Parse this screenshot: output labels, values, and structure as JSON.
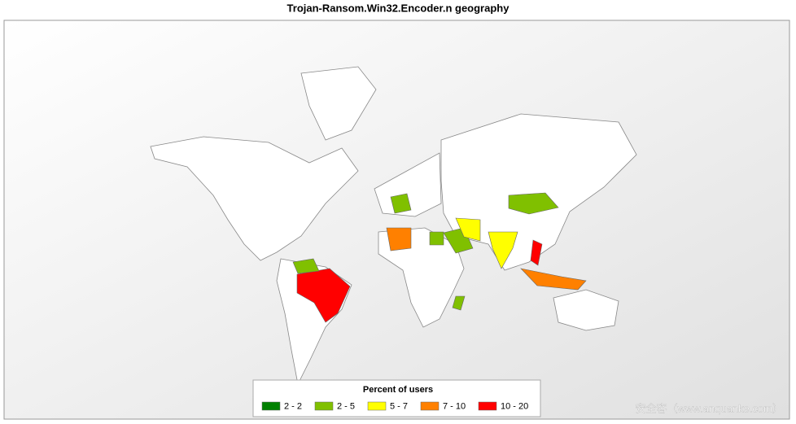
{
  "title": "Trojan-Ransom.Win32.Encoder.n  geography",
  "legend": {
    "title": "Percent of users",
    "items": [
      {
        "label": "2 - 2",
        "color": "#008000"
      },
      {
        "label": "2 - 5",
        "color": "#80c000"
      },
      {
        "label": "5 - 7",
        "color": "#ffff00"
      },
      {
        "label": "7 - 10",
        "color": "#ff8000"
      },
      {
        "label": "10 - 20",
        "color": "#ff0000"
      }
    ]
  },
  "watermark": "安全客（www.anquanke.com）"
}
